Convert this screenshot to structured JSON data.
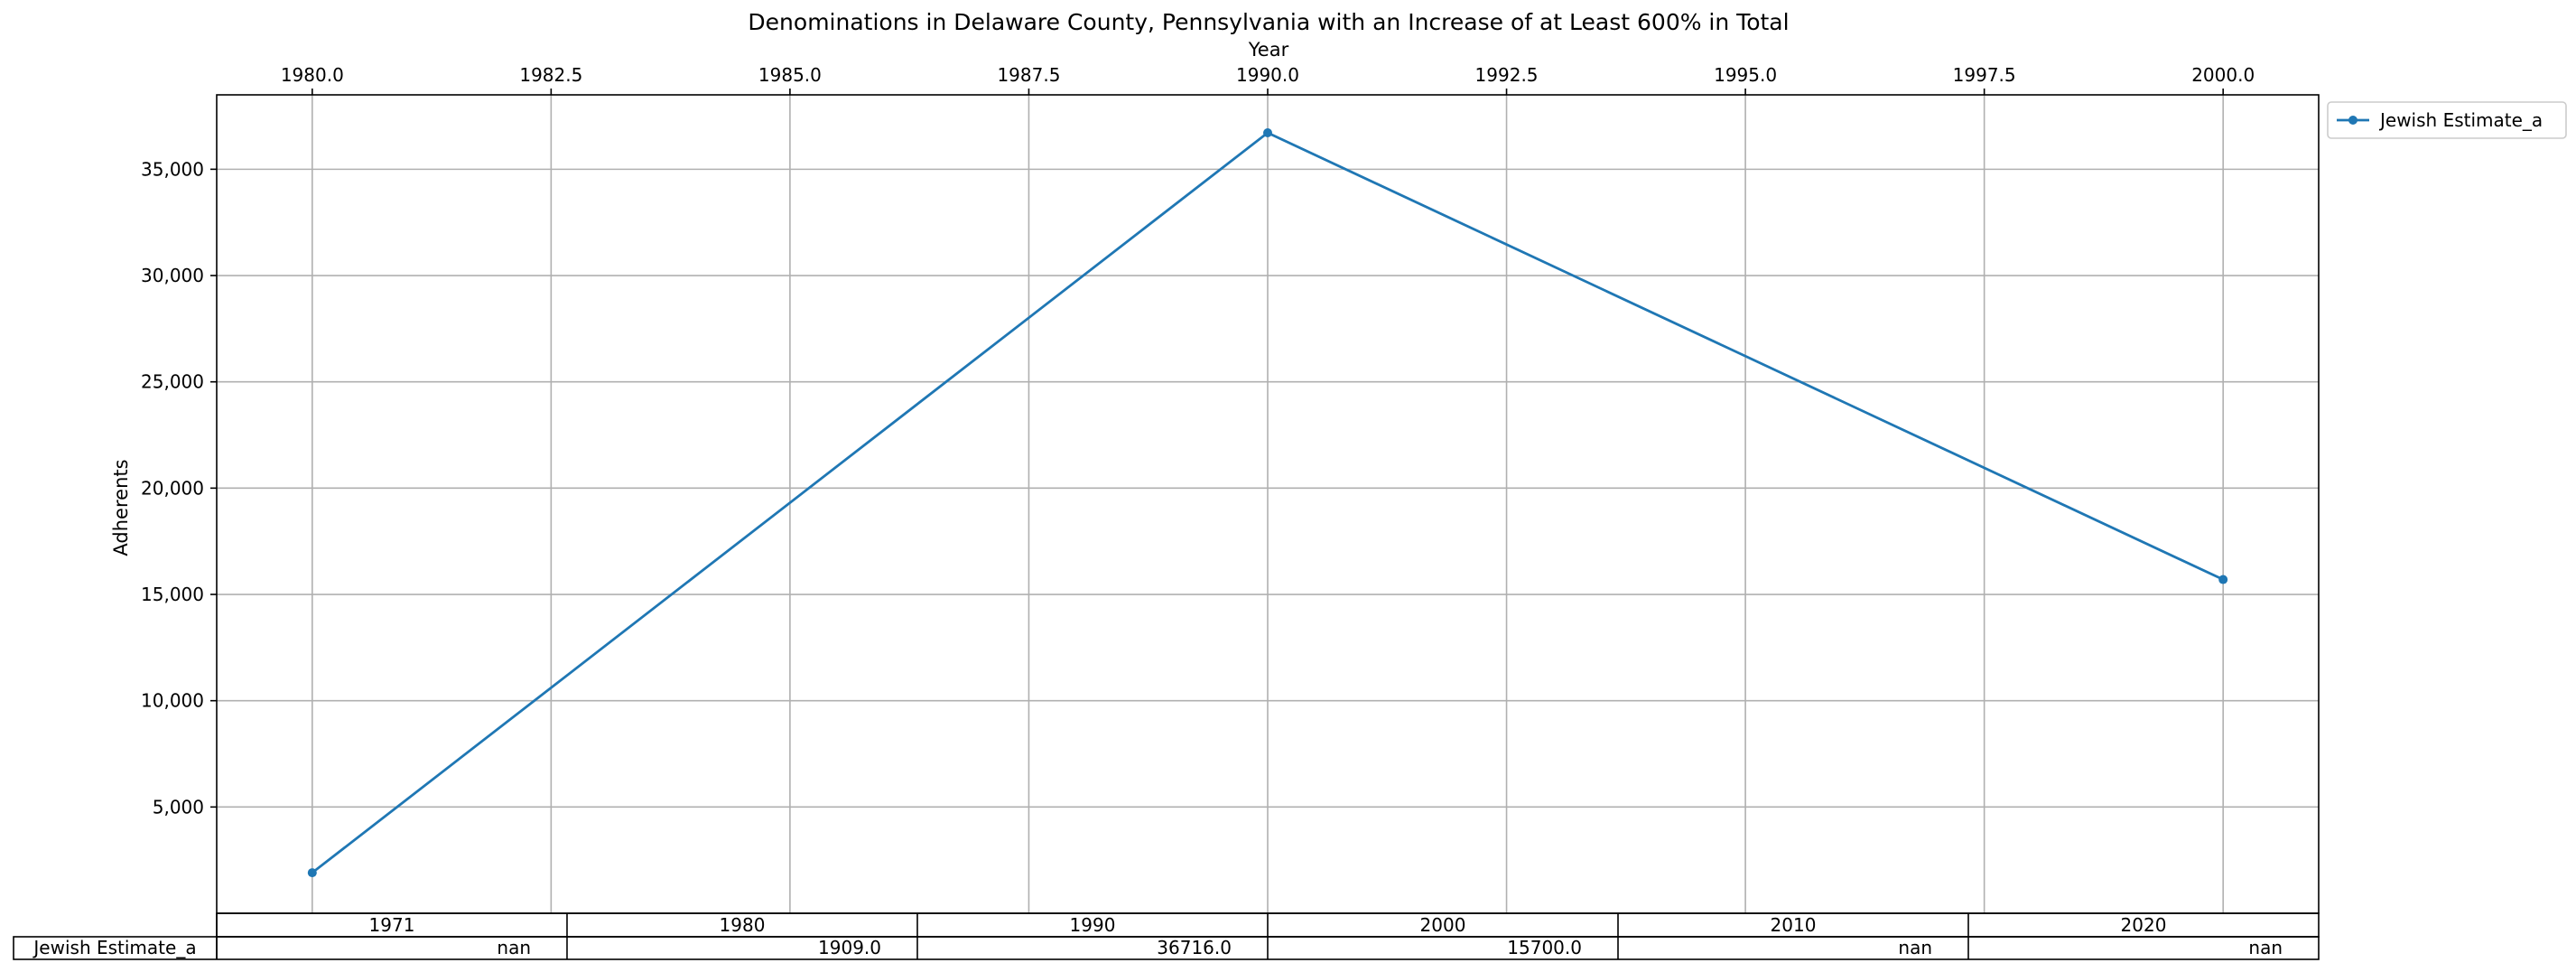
{
  "chart_data": {
    "type": "line",
    "title": "Denominations in Delaware County, Pennsylvania with an Increase of at Least 600% in Total",
    "xlabel": "Year",
    "ylabel": "Adherents",
    "x_axis_position": "top",
    "xlim": [
      1979.0,
      2001.0
    ],
    "ylim": [
      0,
      38500
    ],
    "x_ticks": [
      1980.0,
      1982.5,
      1985.0,
      1987.5,
      1990.0,
      1992.5,
      1995.0,
      1997.5,
      2000.0
    ],
    "x_tick_labels": [
      "1980.0",
      "1982.5",
      "1985.0",
      "1987.5",
      "1990.0",
      "1992.5",
      "1995.0",
      "1997.5",
      "2000.0"
    ],
    "y_ticks": [
      5000,
      10000,
      15000,
      20000,
      25000,
      30000,
      35000
    ],
    "y_tick_labels": [
      "5,000",
      "10,000",
      "15,000",
      "20,000",
      "25,000",
      "30,000",
      "35,000"
    ],
    "grid": true,
    "legend_position": "outside-top-right",
    "series": [
      {
        "name": "Jewish Estimate_a",
        "color": "#1f77b4",
        "x": [
          1980,
          1990,
          2000
        ],
        "y": [
          1909,
          36716,
          15700
        ]
      }
    ],
    "table": {
      "columns": [
        "1971",
        "1980",
        "1990",
        "2000",
        "2010",
        "2020"
      ],
      "rows": [
        {
          "label": "Jewish Estimate_a",
          "cells": [
            "nan",
            "1909.0",
            "36716.0",
            "15700.0",
            "nan",
            "nan"
          ]
        }
      ]
    }
  }
}
